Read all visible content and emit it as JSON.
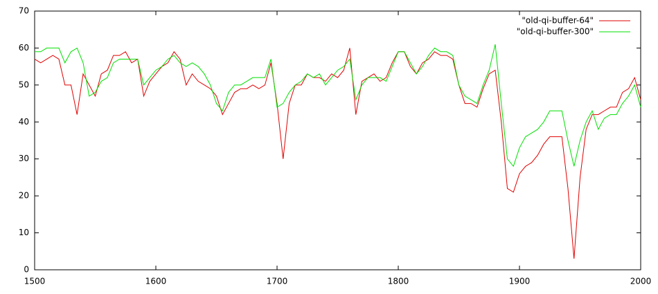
{
  "chart_data": {
    "type": "line",
    "x": [
      1500,
      1505,
      1510,
      1515,
      1520,
      1525,
      1530,
      1535,
      1540,
      1545,
      1550,
      1555,
      1560,
      1565,
      1570,
      1575,
      1580,
      1585,
      1590,
      1595,
      1600,
      1605,
      1610,
      1615,
      1620,
      1625,
      1630,
      1635,
      1640,
      1645,
      1650,
      1655,
      1660,
      1665,
      1670,
      1675,
      1680,
      1685,
      1690,
      1695,
      1700,
      1705,
      1710,
      1715,
      1720,
      1725,
      1730,
      1735,
      1740,
      1745,
      1750,
      1755,
      1760,
      1765,
      1770,
      1775,
      1780,
      1785,
      1790,
      1795,
      1800,
      1805,
      1810,
      1815,
      1820,
      1825,
      1830,
      1835,
      1840,
      1845,
      1850,
      1855,
      1860,
      1865,
      1870,
      1875,
      1880,
      1885,
      1890,
      1895,
      1900,
      1905,
      1910,
      1915,
      1920,
      1925,
      1930,
      1935,
      1940,
      1945,
      1950,
      1955,
      1960,
      1965,
      1970,
      1975,
      1980,
      1985,
      1990,
      1995,
      2000
    ],
    "series": [
      {
        "name": "\"old-qi-buffer-64\"",
        "color": "#e00000",
        "values": [
          57,
          56,
          57,
          58,
          57,
          50,
          50,
          42,
          53,
          50,
          47,
          53,
          54,
          58,
          58,
          59,
          56,
          57,
          47,
          51,
          53,
          55,
          56,
          59,
          57,
          50,
          53,
          51,
          50,
          49,
          47,
          42,
          45,
          48,
          49,
          49,
          50,
          49,
          50,
          56,
          45,
          30,
          45,
          50,
          50,
          53,
          52,
          52,
          51,
          53,
          52,
          54,
          60,
          42,
          51,
          52,
          53,
          51,
          52,
          56,
          59,
          59,
          55,
          53,
          56,
          57,
          59,
          58,
          58,
          57,
          50,
          45,
          45,
          44,
          49,
          53,
          54,
          40,
          22,
          21,
          26,
          28,
          29,
          31,
          34,
          36,
          36,
          36,
          22,
          3,
          25,
          38,
          42,
          42,
          43,
          44,
          44,
          48,
          49,
          52,
          46
        ]
      },
      {
        "name": "\"old-qi-buffer-300\"",
        "color": "#00e000",
        "values": [
          59,
          59,
          60,
          60,
          60,
          56,
          59,
          60,
          56,
          47,
          48,
          51,
          52,
          56,
          57,
          57,
          57,
          57,
          50,
          52,
          54,
          55,
          57,
          58,
          56,
          55,
          56,
          55,
          53,
          50,
          45,
          43,
          48,
          50,
          50,
          51,
          52,
          52,
          52,
          57,
          44,
          45,
          48,
          50,
          51,
          53,
          52,
          53,
          50,
          52,
          54,
          55,
          57,
          46,
          50,
          52,
          52,
          52,
          51,
          55,
          59,
          59,
          56,
          53,
          55,
          58,
          60,
          59,
          59,
          58,
          50,
          47,
          46,
          45,
          50,
          54,
          61,
          45,
          30,
          28,
          33,
          36,
          37,
          38,
          40,
          43,
          43,
          43,
          35,
          28,
          35,
          40,
          43,
          38,
          41,
          42,
          42,
          45,
          47,
          50,
          44
        ]
      }
    ],
    "xlim": [
      1500,
      2000
    ],
    "ylim": [
      0,
      70
    ],
    "xticks": [
      1500,
      1600,
      1700,
      1800,
      1900,
      2000
    ],
    "yticks": [
      0,
      10,
      20,
      30,
      40,
      50,
      60,
      70
    ],
    "legend": "top-right"
  }
}
